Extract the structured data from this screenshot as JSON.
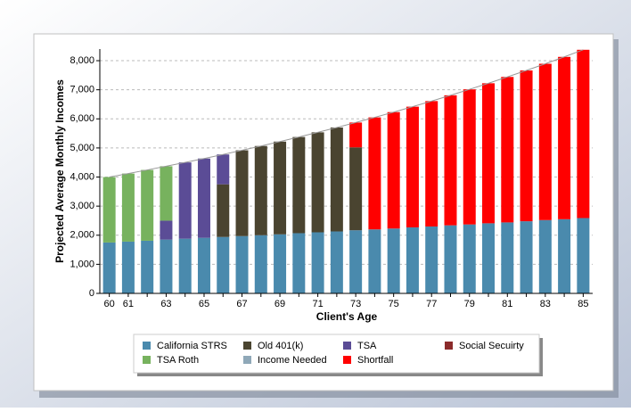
{
  "chart_data": {
    "type": "stacked-bar",
    "x_label": "Client's Age",
    "y_label": "Projected Average Monthly Incomes",
    "categories": [
      "60",
      "61",
      null,
      "63",
      null,
      "65",
      null,
      "67",
      null,
      "69",
      null,
      "71",
      null,
      "73",
      null,
      "75",
      null,
      "77",
      null,
      "79",
      null,
      "81",
      null,
      "83",
      null,
      "85"
    ],
    "ylim": [
      0,
      8400
    ],
    "yticks": [
      0,
      {
        "value": 1000,
        "label": "1,000"
      },
      {
        "value": 2000,
        "label": "2,000"
      },
      {
        "value": 3000,
        "label": "3,000"
      },
      {
        "value": 4000,
        "label": "4,000"
      },
      {
        "value": 5000,
        "label": "5,000"
      },
      {
        "value": 6000,
        "label": "6,000"
      },
      {
        "value": 7000,
        "label": "7,000"
      },
      {
        "value": 8000,
        "label": "8,000"
      }
    ],
    "grid": true,
    "series": [
      {
        "name": "California STRS",
        "color": "#4a8aad",
        "values": [
          1750,
          1780,
          1810,
          1850,
          1880,
          1910,
          1940,
          1970,
          2000,
          2030,
          2070,
          2100,
          2130,
          2170,
          2200,
          2230,
          2270,
          2300,
          2340,
          2370,
          2410,
          2440,
          2480,
          2520,
          2550,
          2590
        ]
      },
      {
        "name": "Old 401(k)",
        "color": "#4a4430",
        "values": [
          0,
          0,
          0,
          0,
          0,
          0,
          1810,
          2949,
          3067,
          3189,
          3306,
          3437,
          3573,
          2850,
          0,
          0,
          0,
          0,
          0,
          0,
          0,
          0,
          0,
          0,
          0,
          0
        ]
      },
      {
        "name": "TSA",
        "color": "#5b4c96",
        "values": [
          0,
          0,
          0,
          650,
          2622,
          2727,
          1026,
          0,
          0,
          0,
          0,
          0,
          0,
          0,
          0,
          0,
          0,
          0,
          0,
          0,
          0,
          0,
          0,
          0,
          0,
          0
        ]
      },
      {
        "name": "Social Secuirty",
        "color": "#8b2b2b",
        "values": [
          0,
          0,
          0,
          0,
          0,
          0,
          0,
          0,
          0,
          0,
          0,
          0,
          0,
          0,
          0,
          0,
          0,
          0,
          0,
          0,
          0,
          0,
          0,
          0,
          0,
          0
        ]
      },
      {
        "name": "TSA Roth",
        "color": "#77b25e",
        "values": [
          2250,
          2340,
          2434,
          1871,
          0,
          0,
          0,
          0,
          0,
          0,
          0,
          0,
          0,
          0,
          0,
          0,
          0,
          0,
          0,
          0,
          0,
          0,
          0,
          0,
          0,
          0
        ]
      },
      {
        "name": "Income Needed",
        "color": "#8fa8b8",
        "type": "line",
        "line_color": "#999999",
        "values": [
          4000,
          4120,
          4244,
          4371,
          4502,
          4637,
          4776,
          4919,
          5067,
          5219,
          5376,
          5537,
          5703,
          5874,
          6050,
          6232,
          6419,
          6611,
          6810,
          7014,
          7224,
          7441,
          7664,
          7894,
          8131,
          8375
        ]
      },
      {
        "name": "Shortfall",
        "color": "#ff0000",
        "values": [
          0,
          0,
          0,
          0,
          0,
          0,
          0,
          0,
          0,
          0,
          0,
          0,
          0,
          854,
          3850,
          4002,
          4149,
          4311,
          4470,
          4644,
          4814,
          5001,
          5184,
          5374,
          5581,
          5785
        ]
      }
    ]
  }
}
